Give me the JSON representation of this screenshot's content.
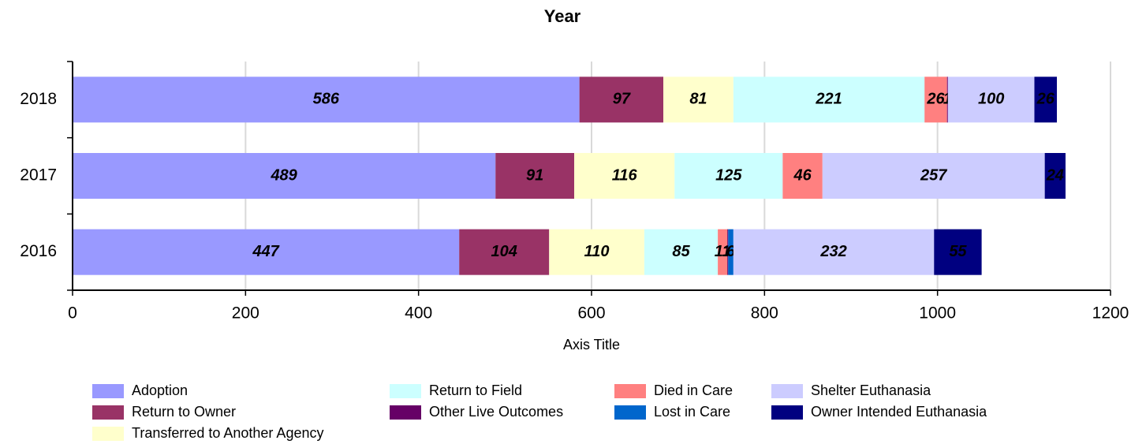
{
  "chart_data": {
    "type": "stacked_bar_horizontal",
    "title": "Year",
    "x_label": "Axis Title",
    "categories": [
      "2016",
      "2017",
      "2018"
    ],
    "series": [
      {
        "name": "Adoption",
        "color": "#9999ff",
        "values": [
          447,
          489,
          586
        ]
      },
      {
        "name": "Return to Owner",
        "color": "#993366",
        "values": [
          104,
          91,
          97
        ]
      },
      {
        "name": "Transferred to Another Agency",
        "color": "#ffffcc",
        "values": [
          110,
          116,
          81
        ]
      },
      {
        "name": "Return to Field",
        "color": "#ccffff",
        "values": [
          85,
          125,
          221
        ]
      },
      {
        "name": "Died in Care",
        "color": "#ff8080",
        "values": [
          11,
          46,
          26
        ]
      },
      {
        "name": "Other Live Outcomes",
        "color": "#660066",
        "values": [
          1,
          null,
          1
        ]
      },
      {
        "name": "Lost in Care",
        "color": "#0066cc",
        "values": [
          6,
          null,
          null
        ]
      },
      {
        "name": "Shelter Euthanasia",
        "color": "#ccccff",
        "values": [
          232,
          257,
          100
        ]
      },
      {
        "name": "Owner Intended Euthanasia",
        "color": "#000080",
        "values": [
          55,
          24,
          26
        ]
      }
    ],
    "xlim": [
      0,
      1200
    ],
    "xticks": [
      0,
      200,
      400,
      600,
      800,
      1000,
      1200
    ],
    "grid": true,
    "legend": "bottom"
  }
}
